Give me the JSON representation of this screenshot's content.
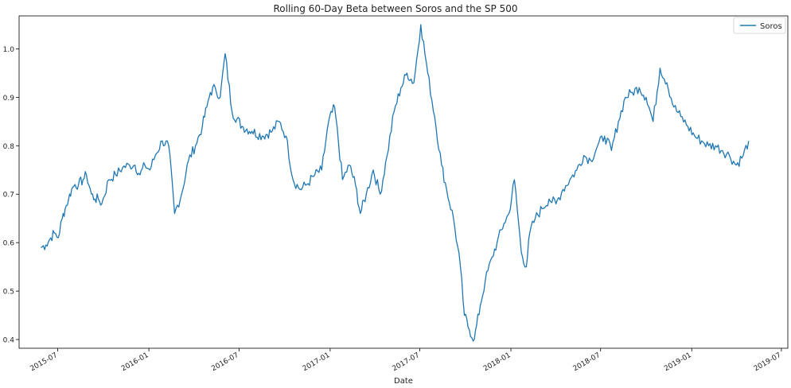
{
  "chart_data": {
    "type": "line",
    "title": "Rolling 60-Day Beta between Soros and the SP 500",
    "xlabel": "Date",
    "ylabel": "",
    "x_ticks": [
      "2015-07",
      "2016-01",
      "2016-07",
      "2017-01",
      "2017-07",
      "2018-01",
      "2018-07",
      "2019-01",
      "2019-07"
    ],
    "y_ticks": [
      "0.4",
      "0.5",
      "0.6",
      "0.7",
      "0.8",
      "0.9",
      "1.0"
    ],
    "xlim": [
      "2015-04-14",
      "2019-07-14"
    ],
    "ylim": [
      0.382,
      1.068
    ],
    "grid": false,
    "legend": {
      "position": "top-right",
      "entries": [
        "Soros"
      ]
    },
    "series": [
      {
        "name": "Soros",
        "color": "#1f77b4",
        "x": [
          "2015-05-28",
          "2015-06-07",
          "2015-06-17",
          "2015-06-24",
          "2015-07-02",
          "2015-07-10",
          "2015-07-16",
          "2015-07-23",
          "2015-07-29",
          "2015-08-05",
          "2015-08-12",
          "2015-08-21",
          "2015-08-28",
          "2015-09-07",
          "2015-09-14",
          "2015-09-21",
          "2015-09-28",
          "2015-10-12",
          "2015-10-26",
          "2015-11-09",
          "2015-11-23",
          "2015-12-04",
          "2015-12-14",
          "2015-12-24",
          "2016-01-03",
          "2016-01-14",
          "2016-01-28",
          "2016-02-10",
          "2016-02-22",
          "2016-03-07",
          "2016-03-21",
          "2016-04-04",
          "2016-04-18",
          "2016-04-27",
          "2016-05-04",
          "2016-05-14",
          "2016-05-24",
          "2016-06-03",
          "2016-06-17",
          "2016-07-07",
          "2016-07-27",
          "2016-08-17",
          "2016-09-06",
          "2016-09-20",
          "2016-10-04",
          "2016-10-18",
          "2016-11-01",
          "2016-11-15",
          "2016-12-01",
          "2016-12-15",
          "2016-12-29",
          "2017-01-10",
          "2017-01-26",
          "2017-02-09",
          "2017-02-21",
          "2017-03-03",
          "2017-03-15",
          "2017-03-29",
          "2017-04-12",
          "2017-04-26",
          "2017-05-10",
          "2017-05-24",
          "2017-06-05",
          "2017-06-19",
          "2017-07-03",
          "2017-07-17",
          "2017-07-31",
          "2017-08-14",
          "2017-08-24",
          "2017-09-07",
          "2017-09-21",
          "2017-09-29",
          "2017-10-09",
          "2017-10-19",
          "2017-10-31",
          "2017-11-10",
          "2017-11-24",
          "2017-12-04",
          "2017-12-18",
          "2017-12-28",
          "2018-01-08",
          "2018-01-22",
          "2018-02-01",
          "2018-02-08",
          "2018-02-19",
          "2018-03-05",
          "2018-03-19",
          "2018-04-02",
          "2018-04-16",
          "2018-04-30",
          "2018-05-14",
          "2018-05-28",
          "2018-06-11",
          "2018-06-25",
          "2018-07-09",
          "2018-07-23",
          "2018-08-06",
          "2018-08-20",
          "2018-09-03",
          "2018-09-17",
          "2018-10-01",
          "2018-10-15",
          "2018-10-29",
          "2018-11-12",
          "2018-11-26",
          "2018-12-10",
          "2018-12-24",
          "2019-01-07",
          "2019-01-21",
          "2019-02-04",
          "2019-02-18",
          "2019-03-04",
          "2019-03-18",
          "2019-04-01",
          "2019-04-15",
          "2019-04-26"
        ],
        "y": [
          0.59,
          0.595,
          0.61,
          0.62,
          0.61,
          0.65,
          0.67,
          0.69,
          0.71,
          0.72,
          0.72,
          0.73,
          0.74,
          0.7,
          0.69,
          0.69,
          0.68,
          0.73,
          0.74,
          0.755,
          0.76,
          0.76,
          0.74,
          0.76,
          0.75,
          0.78,
          0.81,
          0.8,
          0.66,
          0.7,
          0.77,
          0.8,
          0.84,
          0.88,
          0.91,
          0.92,
          0.9,
          0.99,
          0.87,
          0.84,
          0.83,
          0.82,
          0.83,
          0.85,
          0.82,
          0.73,
          0.71,
          0.72,
          0.74,
          0.75,
          0.85,
          0.88,
          0.73,
          0.76,
          0.72,
          0.66,
          0.7,
          0.75,
          0.7,
          0.78,
          0.87,
          0.92,
          0.95,
          0.93,
          1.05,
          0.95,
          0.86,
          0.76,
          0.71,
          0.65,
          0.55,
          0.45,
          0.42,
          0.4,
          0.47,
          0.52,
          0.57,
          0.6,
          0.64,
          0.66,
          0.73,
          0.58,
          0.55,
          0.62,
          0.65,
          0.67,
          0.69,
          0.68,
          0.71,
          0.73,
          0.75,
          0.78,
          0.77,
          0.8,
          0.82,
          0.79,
          0.85,
          0.9,
          0.91,
          0.92,
          0.9,
          0.85,
          0.96,
          0.93,
          0.88,
          0.86,
          0.84,
          0.82,
          0.81,
          0.8,
          0.8,
          0.79,
          0.78,
          0.76,
          0.78,
          0.81
        ]
      }
    ]
  }
}
